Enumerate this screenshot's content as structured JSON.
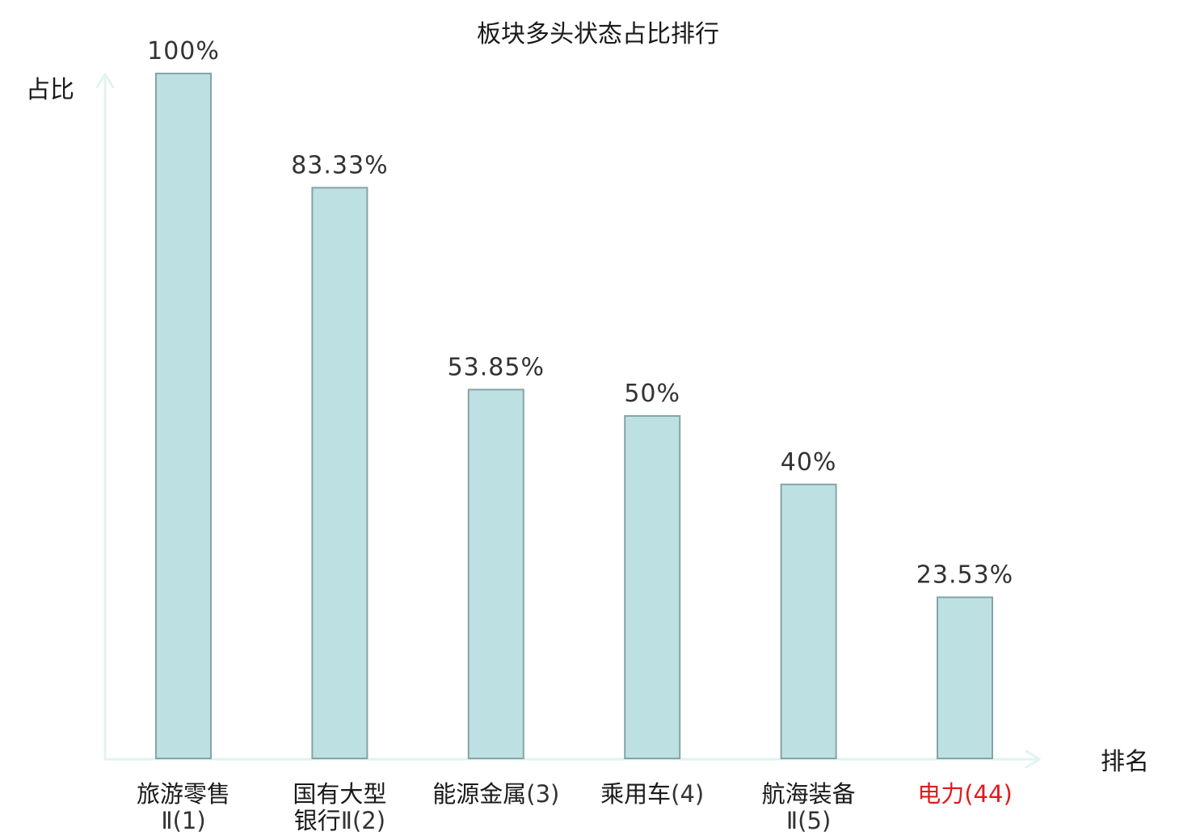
{
  "title": "板块多头状态占比排行",
  "colors": {
    "bar_fill": "#bde0e3",
    "bar_stroke": "#86a3a6",
    "axis": "#e2f3f1",
    "label_text": "#1a1a1a",
    "label_suffix": "#333333",
    "highlight": "#e01b1b"
  },
  "chart_data": {
    "type": "bar",
    "title": "板块多头状态占比排行",
    "xlabel": "排名",
    "ylabel": "占比",
    "ylim": [
      0,
      100
    ],
    "grid": false,
    "categories": [
      {
        "lines": [
          {
            "name": "旅游零售",
            "suffix": ""
          },
          {
            "name": "",
            "suffix": "Ⅱ(1)"
          }
        ],
        "highlight": false
      },
      {
        "lines": [
          {
            "name": "国有大型",
            "suffix": ""
          },
          {
            "name": "银行",
            "suffix": "Ⅱ(2)"
          }
        ],
        "highlight": false
      },
      {
        "lines": [
          {
            "name": "能源金属",
            "suffix": "(3)"
          }
        ],
        "highlight": false
      },
      {
        "lines": [
          {
            "name": "乘用车",
            "suffix": "(4)"
          }
        ],
        "highlight": false
      },
      {
        "lines": [
          {
            "name": "航海装备",
            "suffix": ""
          },
          {
            "name": "",
            "suffix": "Ⅱ(5)"
          }
        ],
        "highlight": false
      },
      {
        "lines": [
          {
            "name": "电力",
            "suffix": "(44)"
          }
        ],
        "highlight": true
      }
    ],
    "values": [
      100,
      83.33,
      53.85,
      50,
      40,
      23.53
    ],
    "value_labels": [
      "100%",
      "83.33%",
      "53.85%",
      "50%",
      "40%",
      "23.53%"
    ]
  }
}
